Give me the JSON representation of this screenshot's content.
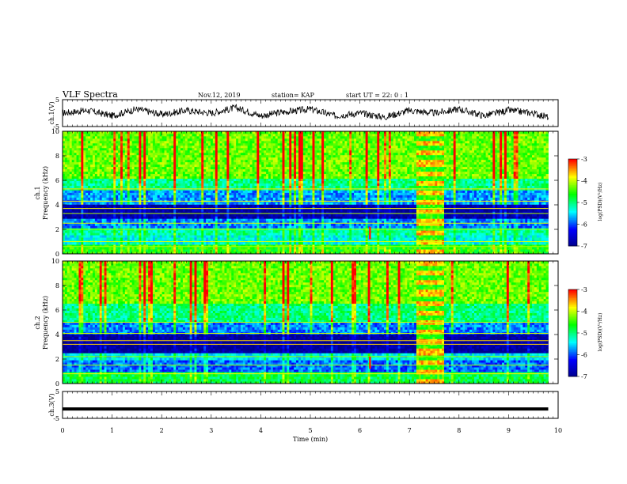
{
  "header": {
    "title": "VLF Spectra",
    "date": "Nov.12, 2019",
    "station": "station= KAP",
    "start": "start  UT =  22: 0 : 1"
  },
  "colors": {
    "spectrogram_colormap": [
      "#00008b",
      "#0000ff",
      "#00ffff",
      "#00ff00",
      "#ffff00",
      "#ff0000"
    ],
    "trace": "#000000"
  },
  "chart_data": [
    {
      "type": "line",
      "name": "ch1-waveform",
      "ylabel": "ch.1(V)",
      "ylim": [
        -5,
        5
      ],
      "yticks": [
        "5",
        "-5"
      ],
      "xlim": [
        0,
        10
      ],
      "x": [
        0,
        0.5,
        1,
        1.5,
        2,
        2.5,
        3,
        3.5,
        4,
        4.5,
        5,
        5.5,
        6,
        6.5,
        7,
        7.5,
        8,
        8.5,
        9,
        9.5,
        9.8
      ],
      "values": [
        0,
        1,
        -1,
        1.5,
        -0.5,
        1,
        0,
        2,
        -1,
        0.5,
        1.5,
        -1,
        0,
        -1.5,
        1,
        0,
        1.5,
        -1,
        1,
        0,
        -1.5
      ]
    },
    {
      "type": "heatmap",
      "name": "ch1-spectrogram",
      "ylabel_line1": "ch.1",
      "ylabel_line2": "Frequency (kHz)",
      "ylim": [
        0,
        10
      ],
      "yticks": [
        "0",
        "2",
        "4",
        "6",
        "8",
        "10"
      ],
      "xlim": [
        0,
        10
      ],
      "data_end_min": 9.8,
      "colorbar": {
        "label": "log(PSD)(V²/Hz)",
        "range": [
          -7,
          -3
        ],
        "ticks": [
          "-3",
          "-4",
          "-5",
          "-6",
          "-7"
        ]
      },
      "bands": [
        {
          "fmin": 0.0,
          "fmax": 0.8,
          "level": 0.62
        },
        {
          "fmin": 0.8,
          "fmax": 1.6,
          "level": 0.42
        },
        {
          "fmin": 1.6,
          "fmax": 2.2,
          "level": 0.48
        },
        {
          "fmin": 2.2,
          "fmax": 2.8,
          "level": 0.3
        },
        {
          "fmin": 2.8,
          "fmax": 4.0,
          "level": 0.05
        },
        {
          "fmin": 4.0,
          "fmax": 5.2,
          "level": 0.32
        },
        {
          "fmin": 5.2,
          "fmax": 6.2,
          "level": 0.5
        },
        {
          "fmin": 6.2,
          "fmax": 10.0,
          "level": 0.68
        }
      ],
      "lines_khz": [
        0.6,
        1.0,
        2.0,
        2.5,
        3.3,
        3.7,
        4.3,
        5.3
      ],
      "burst_min": [
        7.15,
        7.7
      ],
      "spike_min": 6.2
    },
    {
      "type": "heatmap",
      "name": "ch2-spectrogram",
      "ylabel_line1": "ch.2",
      "ylabel_line2": "Frequency (kHz)",
      "ylim": [
        0,
        10
      ],
      "yticks": [
        "0",
        "2",
        "4",
        "6",
        "8",
        "10"
      ],
      "xlim": [
        0,
        10
      ],
      "data_end_min": 9.8,
      "colorbar": {
        "label": "log(PSD)(V²/Hz)",
        "range": [
          -7,
          -3
        ],
        "ticks": [
          "-3",
          "-4",
          "-5",
          "-6",
          "-7"
        ]
      },
      "bands": [
        {
          "fmin": 0.0,
          "fmax": 1.0,
          "level": 0.55
        },
        {
          "fmin": 1.0,
          "fmax": 2.0,
          "level": 0.28
        },
        {
          "fmin": 2.0,
          "fmax": 2.5,
          "level": 0.4
        },
        {
          "fmin": 2.5,
          "fmax": 4.0,
          "level": 0.03
        },
        {
          "fmin": 4.0,
          "fmax": 5.0,
          "level": 0.3
        },
        {
          "fmin": 5.0,
          "fmax": 6.5,
          "level": 0.5
        },
        {
          "fmin": 6.5,
          "fmax": 10.0,
          "level": 0.68
        }
      ],
      "lines_khz": [
        0.8,
        1.5,
        2.2,
        3.2,
        3.5,
        4.1,
        5.0
      ],
      "burst_min": [
        7.15,
        7.7
      ],
      "spike_min": 6.2
    },
    {
      "type": "line",
      "name": "ch3-waveform",
      "ylabel": "ch.3(V)",
      "ylim": [
        -5,
        5
      ],
      "yticks": [
        "5",
        "-5"
      ],
      "xlim": [
        0,
        10
      ],
      "x": [
        0,
        9.8
      ],
      "values": [
        -1.5,
        -1.5
      ]
    }
  ],
  "xaxis": {
    "label": "Time (min)",
    "ticks": [
      "0",
      "1",
      "2",
      "3",
      "4",
      "5",
      "6",
      "7",
      "8",
      "9",
      "10"
    ]
  }
}
